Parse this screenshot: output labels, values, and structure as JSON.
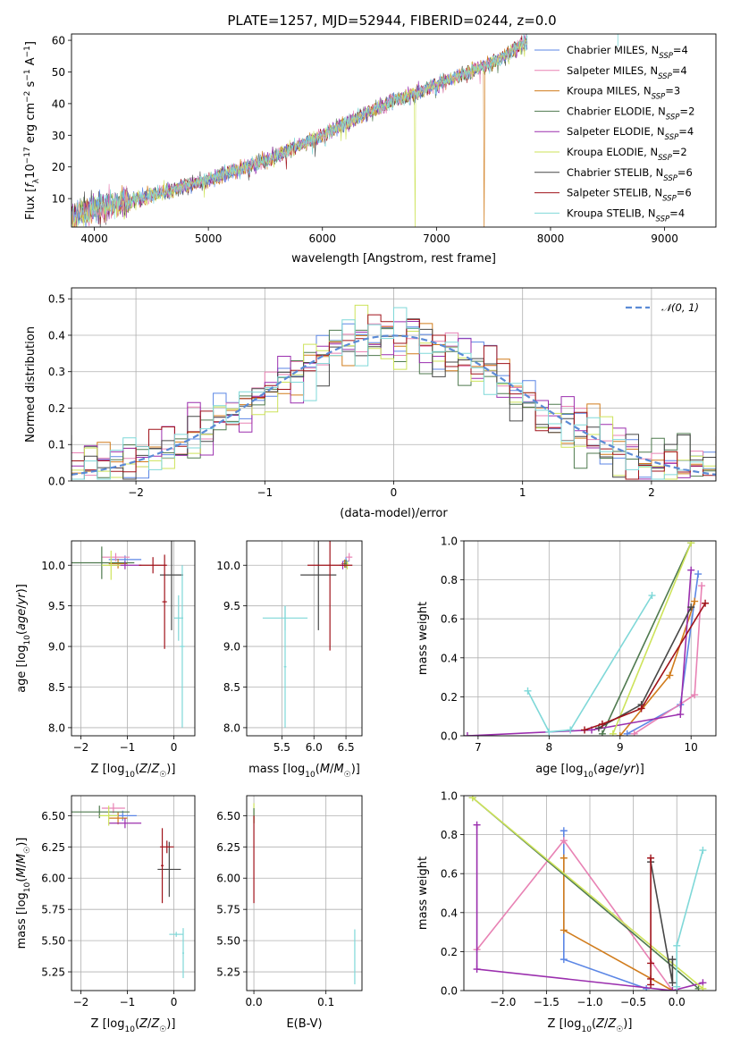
{
  "colors": {
    "Chabrier MILES": "#5b86e5",
    "Salpeter MILES": "#e882b4",
    "Kroupa MILES": "#d17c1c",
    "Chabrier ELODIE": "#4f7a4f",
    "Salpeter ELODIE": "#9b2fae",
    "Kroupa ELODIE": "#cde35a",
    "Chabrier STELIB": "#474747",
    "Salpeter STELIB": "#a0121a",
    "Kroupa STELIB": "#7fd8d8",
    "normal": "#5b8bd6"
  },
  "chart_data": [
    {
      "id": "spectrum",
      "type": "line",
      "title": "PLATE=1257, MJD=52944, FIBERID=0244, z=0.0",
      "xlabel": "wavelength [Angstrom, rest frame]",
      "ylabel": "Flux [f_λ10^-17 erg cm^-2 s^-1 A^-1]",
      "xlim": [
        3800,
        9450
      ],
      "ylim": [
        1,
        62
      ],
      "xticks": [
        "4000",
        "5000",
        "6000",
        "7000",
        "8000",
        "9000"
      ],
      "yticks": [
        "10",
        "20",
        "30",
        "40",
        "50",
        "60"
      ],
      "grid": false,
      "legend_position": "right",
      "legend": [
        {
          "name": "Chabrier MILES",
          "n": "4"
        },
        {
          "name": "Salpeter MILES",
          "n": "4"
        },
        {
          "name": "Kroupa MILES",
          "n": "3"
        },
        {
          "name": "Chabrier ELODIE",
          "n": "2"
        },
        {
          "name": "Salpeter ELODIE",
          "n": "4"
        },
        {
          "name": "Kroupa ELODIE",
          "n": "2"
        },
        {
          "name": "Chabrier STELIB",
          "n": "6"
        },
        {
          "name": "Salpeter STELIB",
          "n": "6"
        },
        {
          "name": "Kroupa STELIB",
          "n": "4"
        }
      ],
      "trend": [
        [
          3800,
          5
        ],
        [
          4500,
          11
        ],
        [
          5000,
          16
        ],
        [
          5500,
          22
        ],
        [
          6000,
          30
        ],
        [
          6500,
          39
        ],
        [
          7000,
          46
        ],
        [
          7500,
          53
        ],
        [
          7800,
          60
        ]
      ],
      "drops": [
        {
          "series": "Kroupa ELODIE",
          "x": 6810
        },
        {
          "series": "Kroupa MILES",
          "x": 7420
        }
      ]
    },
    {
      "id": "residuals",
      "type": "histogram",
      "xlabel": "(data-model)/error",
      "ylabel": "Normed distribution",
      "xlim": [
        -2.5,
        2.5
      ],
      "ylim": [
        0,
        0.53
      ],
      "xticks": [
        "−2",
        "−1",
        "0",
        "1",
        "2"
      ],
      "yticks": [
        "0.0",
        "0.1",
        "0.2",
        "0.3",
        "0.4",
        "0.5"
      ],
      "grid": true,
      "legend_label": "𝒩(0, 1)",
      "legend_position": "upper right"
    },
    {
      "id": "age_vs_Z",
      "type": "errorbar",
      "xlabel": "Z [log10(Z/Z☉)]",
      "ylabel": "age  [log10(age/yr)]",
      "xlim": [
        -2.2,
        0.45
      ],
      "ylim": [
        7.9,
        10.3
      ],
      "xticks": [
        "−2",
        "−1",
        "0"
      ],
      "yticks": [
        "8.0",
        "8.5",
        "9.0",
        "9.5",
        "10.0"
      ],
      "grid": true,
      "points": [
        {
          "series": "Chabrier MILES",
          "x": -1.05,
          "xerr": 0.35,
          "y": 10.07,
          "yerr": 0.05
        },
        {
          "series": "Salpeter MILES",
          "x": -1.25,
          "xerr": 0.3,
          "y": 10.1,
          "yerr": 0.05
        },
        {
          "series": "Kroupa MILES",
          "x": -1.2,
          "xerr": 0.2,
          "y": 10.02,
          "yerr": 0.06
        },
        {
          "series": "Chabrier ELODIE",
          "x": -1.55,
          "xerr": 0.7,
          "y": 10.03,
          "yerr": 0.2
        },
        {
          "series": "Salpeter ELODIE",
          "x": -1.05,
          "xerr": 0.35,
          "y": 10.0,
          "yerr": 0.05
        },
        {
          "series": "Kroupa ELODIE",
          "x": -1.35,
          "xerr": 0.2,
          "y": 10.0,
          "yerr": 0.18
        },
        {
          "series": "Chabrier STELIB",
          "x": -0.05,
          "xerr": 0.25,
          "y": 9.88,
          "yerr": 0.68
        },
        {
          "series": "Salpeter STELIB",
          "x": -0.45,
          "xerr": 0.3,
          "y": 10.0,
          "yerr": 0.1
        },
        {
          "series": "Salpeter STELIB",
          "x": -0.2,
          "xerr": 0.05,
          "y": 9.55,
          "yerr": 0.58
        },
        {
          "series": "Kroupa STELIB",
          "x": 0.1,
          "xerr": 0.1,
          "y": 9.35,
          "yerr": 0.28
        },
        {
          "series": "Kroupa STELIB",
          "x": 0.18,
          "xerr": 0.05,
          "y": 9.0,
          "yerr": 1.0
        }
      ]
    },
    {
      "id": "age_vs_mass",
      "type": "errorbar",
      "xlabel": "mass [log10(M/M☉)]",
      "xlim": [
        4.95,
        6.75
      ],
      "ylim": [
        7.9,
        10.3
      ],
      "xticks": [
        "5.5",
        "6.0",
        "6.5"
      ],
      "yticks": [
        "8.0",
        "8.5",
        "9.0",
        "9.5",
        "10.0"
      ],
      "grid": true,
      "points": [
        {
          "series": "Chabrier MILES",
          "x": 6.5,
          "xerr": 0.05,
          "y": 10.05,
          "yerr": 0.05
        },
        {
          "series": "Salpeter MILES",
          "x": 6.55,
          "xerr": 0.05,
          "y": 10.1,
          "yerr": 0.05
        },
        {
          "series": "Kroupa MILES",
          "x": 6.48,
          "xerr": 0.05,
          "y": 10.02,
          "yerr": 0.05
        },
        {
          "series": "Chabrier ELODIE",
          "x": 6.5,
          "xerr": 0.03,
          "y": 10.02,
          "yerr": 0.05
        },
        {
          "series": "Salpeter ELODIE",
          "x": 6.45,
          "xerr": 0.05,
          "y": 10.0,
          "yerr": 0.05
        },
        {
          "series": "Kroupa ELODIE",
          "x": 6.52,
          "xerr": 0.03,
          "y": 10.0,
          "yerr": 0.05
        },
        {
          "series": "Chabrier STELIB",
          "x": 6.07,
          "xerr": 0.28,
          "y": 9.88,
          "yerr": 0.68
        },
        {
          "series": "Salpeter STELIB",
          "x": 6.25,
          "xerr": 0.35,
          "y": 10.0,
          "yerr": 1.05
        },
        {
          "series": "Kroupa STELIB",
          "x": 5.55,
          "xerr": 0.35,
          "y": 9.35,
          "yerr": 0.15
        },
        {
          "series": "Kroupa STELIB",
          "x": 5.55,
          "xerr": 0.02,
          "y": 8.75,
          "yerr": 0.75
        }
      ]
    },
    {
      "id": "weight_vs_age",
      "type": "line",
      "xlabel": "age  [log10(age/yr)]",
      "ylabel": "mass weight",
      "xlim": [
        6.8,
        10.35
      ],
      "ylim": [
        0,
        1
      ],
      "xticks": [
        "7",
        "8",
        "9",
        "10"
      ],
      "yticks": [
        "0.0",
        "0.2",
        "0.4",
        "0.6",
        "0.8",
        "1.0"
      ],
      "grid": true,
      "series": [
        {
          "name": "Chabrier MILES",
          "points": [
            [
              9.1,
              0.01
            ],
            [
              9.85,
              0.16
            ],
            [
              10.1,
              0.83
            ]
          ]
        },
        {
          "name": "Salpeter MILES",
          "points": [
            [
              9.2,
              0.01
            ],
            [
              10.05,
              0.21
            ],
            [
              10.15,
              0.77
            ]
          ]
        },
        {
          "name": "Kroupa MILES",
          "points": [
            [
              9.0,
              0.0
            ],
            [
              9.7,
              0.31
            ],
            [
              10.05,
              0.69
            ]
          ]
        },
        {
          "name": "Chabrier ELODIE",
          "points": [
            [
              8.75,
              0.01
            ],
            [
              10.0,
              0.99
            ]
          ]
        },
        {
          "name": "Salpeter ELODIE",
          "points": [
            [
              6.85,
              0.0
            ],
            [
              8.6,
              0.03
            ],
            [
              9.85,
              0.11
            ],
            [
              10.0,
              0.85
            ]
          ]
        },
        {
          "name": "Kroupa ELODIE",
          "points": [
            [
              8.9,
              0.01
            ],
            [
              10.0,
              0.99
            ]
          ]
        },
        {
          "name": "Chabrier STELIB",
          "points": [
            [
              8.7,
              0.04
            ],
            [
              9.3,
              0.16
            ],
            [
              10.0,
              0.66
            ]
          ]
        },
        {
          "name": "Salpeter STELIB",
          "points": [
            [
              8.5,
              0.03
            ],
            [
              8.75,
              0.06
            ],
            [
              9.3,
              0.14
            ],
            [
              10.2,
              0.68
            ]
          ]
        },
        {
          "name": "Kroupa STELIB",
          "points": [
            [
              7.7,
              0.23
            ],
            [
              8.0,
              0.02
            ],
            [
              8.3,
              0.03
            ],
            [
              9.45,
              0.72
            ]
          ]
        }
      ]
    },
    {
      "id": "mass_vs_Z",
      "type": "errorbar",
      "xlabel": "Z [log10(Z/Z☉)]",
      "ylabel": "mass [log10(M/M☉)]",
      "xlim": [
        -2.2,
        0.45
      ],
      "ylim": [
        5.1,
        6.66
      ],
      "xticks": [
        "−2",
        "−1",
        "0"
      ],
      "yticks": [
        "5.25",
        "5.50",
        "5.75",
        "6.00",
        "6.25",
        "6.50"
      ],
      "grid": true,
      "points": [
        {
          "series": "Chabrier MILES",
          "x": -1.1,
          "xerr": 0.3,
          "y": 6.5,
          "yerr": 0.04
        },
        {
          "series": "Salpeter MILES",
          "x": -1.3,
          "xerr": 0.25,
          "y": 6.56,
          "yerr": 0.04
        },
        {
          "series": "Kroupa MILES",
          "x": -1.2,
          "xerr": 0.2,
          "y": 6.48,
          "yerr": 0.05
        },
        {
          "series": "Chabrier ELODIE",
          "x": -1.6,
          "xerr": 0.65,
          "y": 6.53,
          "yerr": 0.05
        },
        {
          "series": "Salpeter ELODIE",
          "x": -1.05,
          "xerr": 0.35,
          "y": 6.44,
          "yerr": 0.04
        },
        {
          "series": "Kroupa ELODIE",
          "x": -1.4,
          "xerr": 0.2,
          "y": 6.5,
          "yerr": 0.08
        },
        {
          "series": "Chabrier STELIB",
          "x": -0.1,
          "xerr": 0.25,
          "y": 6.07,
          "yerr": 0.22
        },
        {
          "series": "Salpeter STELIB",
          "x": -0.15,
          "xerr": 0.15,
          "y": 6.25,
          "yerr": 0.05
        },
        {
          "series": "Salpeter STELIB",
          "x": -0.25,
          "xerr": 0.03,
          "y": 6.1,
          "yerr": 0.3
        },
        {
          "series": "Kroupa STELIB",
          "x": 0.05,
          "xerr": 0.15,
          "y": 5.55,
          "yerr": 0.02
        },
        {
          "series": "Kroupa STELIB",
          "x": 0.2,
          "xerr": 0.02,
          "y": 5.4,
          "yerr": 0.2
        }
      ]
    },
    {
      "id": "mass_vs_ebv",
      "type": "errorbar",
      "xlabel": "E(B-V)",
      "xlim": [
        -0.01,
        0.15
      ],
      "ylim": [
        5.1,
        6.66
      ],
      "xticks": [
        "0.0",
        "0.1"
      ],
      "yticks": [
        "5.25",
        "5.50",
        "5.75",
        "6.00",
        "6.25",
        "6.50"
      ],
      "grid": true,
      "points": [
        {
          "series": "Kroupa ELODIE",
          "x": 0.0,
          "xerr": 0.0,
          "y": 6.52,
          "yerr": 0.08
        },
        {
          "series": "Chabrier ELODIE",
          "x": 0.0,
          "xerr": 0.0,
          "y": 6.5,
          "yerr": 0.06
        },
        {
          "series": "Salpeter STELIB",
          "x": 0.0,
          "xerr": 0.0,
          "y": 6.15,
          "yerr": 0.35
        },
        {
          "series": "Kroupa STELIB",
          "x": 0.14,
          "xerr": 0.0,
          "y": 5.37,
          "yerr": 0.22
        }
      ]
    },
    {
      "id": "weight_vs_Z",
      "type": "line",
      "xlabel": "Z [log10(Z/Z☉)]",
      "ylabel": "mass weight",
      "xlim": [
        -2.45,
        0.45
      ],
      "ylim": [
        0,
        1
      ],
      "xticks": [
        "−2.0",
        "−1.5",
        "−1.0",
        "−0.5",
        "0.0"
      ],
      "yticks": [
        "0.0",
        "0.2",
        "0.4",
        "0.6",
        "0.8",
        "1.0"
      ],
      "grid": true,
      "series": [
        {
          "name": "Chabrier MILES",
          "points": [
            [
              -0.35,
              0.01
            ],
            [
              -1.3,
              0.16
            ],
            [
              -1.3,
              0.82
            ]
          ]
        },
        {
          "name": "Salpeter MILES",
          "points": [
            [
              -0.05,
              0.0
            ],
            [
              -1.3,
              0.77
            ],
            [
              -2.3,
              0.21
            ]
          ]
        },
        {
          "name": "Kroupa MILES",
          "points": [
            [
              -0.05,
              0.0
            ],
            [
              -1.3,
              0.31
            ],
            [
              -1.3,
              0.68
            ]
          ]
        },
        {
          "name": "Chabrier ELODIE",
          "points": [
            [
              0.25,
              0.01
            ],
            [
              -2.35,
              0.99
            ]
          ]
        },
        {
          "name": "Salpeter ELODIE",
          "points": [
            [
              0.3,
              0.04
            ],
            [
              -0.05,
              0.0
            ],
            [
              -2.3,
              0.11
            ],
            [
              -2.3,
              0.85
            ]
          ]
        },
        {
          "name": "Kroupa ELODIE",
          "points": [
            [
              0.3,
              0.01
            ],
            [
              -2.35,
              0.99
            ]
          ]
        },
        {
          "name": "Chabrier STELIB",
          "points": [
            [
              -0.3,
              0.66
            ],
            [
              -0.05,
              0.04
            ],
            [
              -0.05,
              0.16
            ]
          ]
        },
        {
          "name": "Salpeter STELIB",
          "points": [
            [
              -0.3,
              0.68
            ],
            [
              -0.3,
              0.03
            ],
            [
              -0.3,
              0.06
            ],
            [
              -0.3,
              0.14
            ]
          ]
        },
        {
          "name": "Kroupa STELIB",
          "points": [
            [
              0.0,
              0.02
            ],
            [
              0.0,
              0.23
            ],
            [
              0.3,
              0.72
            ]
          ]
        }
      ]
    }
  ]
}
